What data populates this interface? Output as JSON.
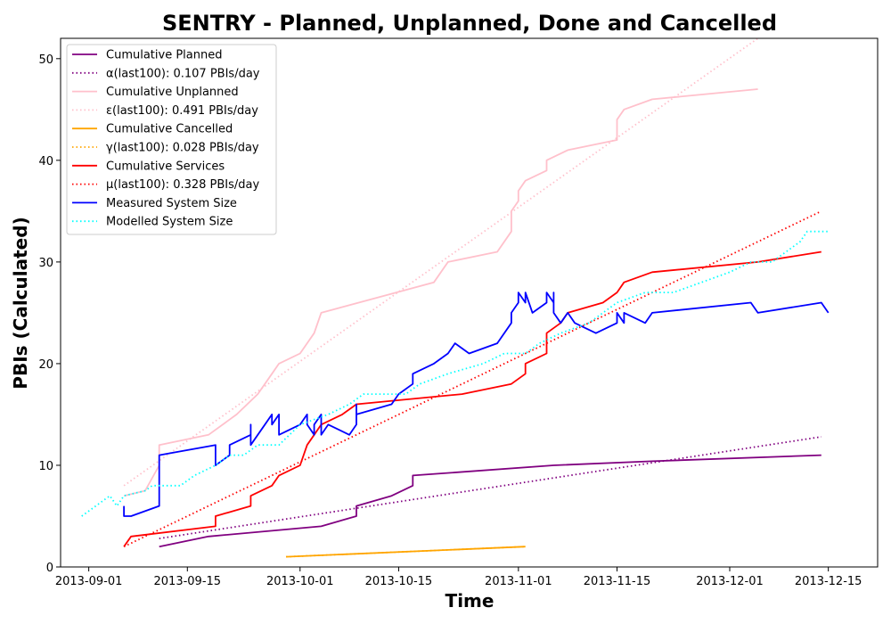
{
  "chart_data": {
    "type": "line",
    "title": "SENTRY - Planned, Unplanned, Done  and Cancelled",
    "xlabel": "Time",
    "ylabel": "PBIs (Calculated)",
    "xlim": [
      "2013-08-28",
      "2013-12-22"
    ],
    "ylim": [
      0,
      52
    ],
    "x_ticks": [
      "2013-09-01",
      "2013-09-15",
      "2013-10-01",
      "2013-10-15",
      "2013-11-01",
      "2013-11-15",
      "2013-12-01",
      "2013-12-15"
    ],
    "y_ticks": [
      0,
      10,
      20,
      30,
      40,
      50
    ],
    "grid": false,
    "legend_position": "top-left",
    "series": [
      {
        "name": "Cumulative Planned",
        "color": "#800080",
        "style": "solid",
        "points": [
          [
            "2013-09-11",
            2
          ],
          [
            "2013-09-18",
            3
          ],
          [
            "2013-10-04",
            4
          ],
          [
            "2013-10-09",
            5
          ],
          [
            "2013-10-09",
            6
          ],
          [
            "2013-10-14",
            7
          ],
          [
            "2013-10-17",
            8
          ],
          [
            "2013-10-17",
            9
          ],
          [
            "2013-11-06",
            10
          ],
          [
            "2013-11-20",
            10.4
          ],
          [
            "2013-12-14",
            11
          ]
        ]
      },
      {
        "name": "α(last100): 0.107 PBIs/day",
        "color": "#800080",
        "style": "dotted",
        "points": [
          [
            "2013-09-11",
            2.8
          ],
          [
            "2013-12-14",
            12.8
          ]
        ]
      },
      {
        "name": "Cumulative Unplanned",
        "color": "#ffc0cb",
        "style": "solid",
        "points": [
          [
            "2013-09-06",
            7
          ],
          [
            "2013-09-09",
            7.5
          ],
          [
            "2013-09-11",
            10
          ],
          [
            "2013-09-11",
            12
          ],
          [
            "2013-09-18",
            13
          ],
          [
            "2013-09-22",
            15
          ],
          [
            "2013-09-25",
            17
          ],
          [
            "2013-09-27",
            19
          ],
          [
            "2013-09-28",
            20
          ],
          [
            "2013-10-01",
            21
          ],
          [
            "2013-10-03",
            23
          ],
          [
            "2013-10-04",
            25
          ],
          [
            "2013-10-20",
            28
          ],
          [
            "2013-10-22",
            30
          ],
          [
            "2013-10-29",
            31
          ],
          [
            "2013-10-31",
            33
          ],
          [
            "2013-10-31",
            35
          ],
          [
            "2013-11-01",
            36
          ],
          [
            "2013-11-01",
            37
          ],
          [
            "2013-11-02",
            38
          ],
          [
            "2013-11-05",
            39
          ],
          [
            "2013-11-05",
            40
          ],
          [
            "2013-11-08",
            41
          ],
          [
            "2013-11-15",
            42
          ],
          [
            "2013-11-15",
            44
          ],
          [
            "2013-11-16",
            45
          ],
          [
            "2013-11-20",
            46
          ],
          [
            "2013-12-05",
            47
          ]
        ]
      },
      {
        "name": "ε(last100): 0.491 PBIs/day",
        "color": "#ffc0cb",
        "style": "dotted",
        "points": [
          [
            "2013-09-06",
            8
          ],
          [
            "2013-12-05",
            52
          ]
        ]
      },
      {
        "name": "Cumulative Cancelled",
        "color": "#ffa500",
        "style": "solid",
        "points": [
          [
            "2013-09-29",
            1
          ],
          [
            "2013-11-02",
            2
          ]
        ]
      },
      {
        "name": "γ(last100): 0.028 PBIs/day",
        "color": "#ffa500",
        "style": "dotted",
        "points": [
          [
            "2013-09-29",
            1
          ],
          [
            "2013-11-02",
            2
          ]
        ]
      },
      {
        "name": "Cumulative Services",
        "color": "#ff0000",
        "style": "solid",
        "points": [
          [
            "2013-09-06",
            2
          ],
          [
            "2013-09-07",
            3
          ],
          [
            "2013-09-19",
            4
          ],
          [
            "2013-09-19",
            5
          ],
          [
            "2013-09-24",
            6
          ],
          [
            "2013-09-24",
            7
          ],
          [
            "2013-09-27",
            8
          ],
          [
            "2013-09-28",
            9
          ],
          [
            "2013-10-01",
            10
          ],
          [
            "2013-10-02",
            12
          ],
          [
            "2013-10-03",
            13
          ],
          [
            "2013-10-04",
            14
          ],
          [
            "2013-10-07",
            15
          ],
          [
            "2013-10-09",
            16
          ],
          [
            "2013-10-24",
            17
          ],
          [
            "2013-10-31",
            18
          ],
          [
            "2013-11-02",
            19
          ],
          [
            "2013-11-02",
            20
          ],
          [
            "2013-11-05",
            21
          ],
          [
            "2013-11-05",
            23
          ],
          [
            "2013-11-07",
            24
          ],
          [
            "2013-11-08",
            25
          ],
          [
            "2013-11-13",
            26
          ],
          [
            "2013-11-15",
            27
          ],
          [
            "2013-11-16",
            28
          ],
          [
            "2013-11-20",
            29
          ],
          [
            "2013-12-05",
            30
          ],
          [
            "2013-12-14",
            31
          ]
        ]
      },
      {
        "name": "μ(last100): 0.328 PBIs/day",
        "color": "#ff0000",
        "style": "dotted",
        "points": [
          [
            "2013-09-06",
            2
          ],
          [
            "2013-12-14",
            35
          ]
        ]
      },
      {
        "name": "Measured System Size",
        "color": "#0000ff",
        "style": "solid",
        "points": [
          [
            "2013-09-06",
            6
          ],
          [
            "2013-09-06",
            5
          ],
          [
            "2013-09-07",
            5
          ],
          [
            "2013-09-11",
            6
          ],
          [
            "2013-09-11",
            10
          ],
          [
            "2013-09-11",
            11
          ],
          [
            "2013-09-19",
            12
          ],
          [
            "2013-09-19",
            10
          ],
          [
            "2013-09-21",
            11
          ],
          [
            "2013-09-21",
            12
          ],
          [
            "2013-09-24",
            13
          ],
          [
            "2013-09-24",
            14
          ],
          [
            "2013-09-24",
            12
          ],
          [
            "2013-09-25",
            13
          ],
          [
            "2013-09-26",
            14
          ],
          [
            "2013-09-27",
            15
          ],
          [
            "2013-09-27",
            14
          ],
          [
            "2013-09-28",
            15
          ],
          [
            "2013-09-28",
            13
          ],
          [
            "2013-10-01",
            14
          ],
          [
            "2013-10-02",
            15
          ],
          [
            "2013-10-02",
            14
          ],
          [
            "2013-10-03",
            13
          ],
          [
            "2013-10-03",
            14
          ],
          [
            "2013-10-04",
            15
          ],
          [
            "2013-10-04",
            13
          ],
          [
            "2013-10-05",
            14
          ],
          [
            "2013-10-08",
            13
          ],
          [
            "2013-10-09",
            14
          ],
          [
            "2013-10-09",
            16
          ],
          [
            "2013-10-09",
            15
          ],
          [
            "2013-10-14",
            16
          ],
          [
            "2013-10-15",
            17
          ],
          [
            "2013-10-17",
            18
          ],
          [
            "2013-10-17",
            19
          ],
          [
            "2013-10-20",
            20
          ],
          [
            "2013-10-22",
            21
          ],
          [
            "2013-10-23",
            22
          ],
          [
            "2013-10-25",
            21
          ],
          [
            "2013-10-29",
            22
          ],
          [
            "2013-10-31",
            24
          ],
          [
            "2013-10-31",
            25
          ],
          [
            "2013-11-01",
            26
          ],
          [
            "2013-11-01",
            27
          ],
          [
            "2013-11-02",
            26
          ],
          [
            "2013-11-02",
            27
          ],
          [
            "2013-11-03",
            25
          ],
          [
            "2013-11-05",
            26
          ],
          [
            "2013-11-05",
            27
          ],
          [
            "2013-11-06",
            26
          ],
          [
            "2013-11-06",
            27
          ],
          [
            "2013-11-06",
            25
          ],
          [
            "2013-11-07",
            24
          ],
          [
            "2013-11-08",
            25
          ],
          [
            "2013-11-09",
            24
          ],
          [
            "2013-11-12",
            23
          ],
          [
            "2013-11-15",
            24
          ],
          [
            "2013-11-15",
            25
          ],
          [
            "2013-11-16",
            24
          ],
          [
            "2013-11-16",
            25
          ],
          [
            "2013-11-19",
            24
          ],
          [
            "2013-11-20",
            25
          ],
          [
            "2013-12-04",
            26
          ],
          [
            "2013-12-05",
            25
          ],
          [
            "2013-12-14",
            26
          ],
          [
            "2013-12-15",
            25
          ]
        ]
      },
      {
        "name": "Modelled System Size",
        "color": "#00ffff",
        "style": "dotted",
        "points": [
          [
            "2013-08-31",
            5
          ],
          [
            "2013-09-02",
            6
          ],
          [
            "2013-09-04",
            7
          ],
          [
            "2013-09-05",
            6
          ],
          [
            "2013-09-06",
            7
          ],
          [
            "2013-09-09",
            7.5
          ],
          [
            "2013-09-10",
            8
          ],
          [
            "2013-09-14",
            8
          ],
          [
            "2013-09-16",
            9
          ],
          [
            "2013-09-19",
            10
          ],
          [
            "2013-09-21",
            11
          ],
          [
            "2013-09-23",
            11
          ],
          [
            "2013-09-25",
            12
          ],
          [
            "2013-09-28",
            12
          ],
          [
            "2013-10-01",
            14
          ],
          [
            "2013-10-05",
            15
          ],
          [
            "2013-10-08",
            16
          ],
          [
            "2013-10-10",
            17
          ],
          [
            "2013-10-16",
            17
          ],
          [
            "2013-10-18",
            18
          ],
          [
            "2013-10-22",
            19
          ],
          [
            "2013-10-27",
            20
          ],
          [
            "2013-10-30",
            21
          ],
          [
            "2013-11-02",
            21
          ],
          [
            "2013-11-04",
            22
          ],
          [
            "2013-11-07",
            23
          ],
          [
            "2013-11-11",
            24
          ],
          [
            "2013-11-15",
            26
          ],
          [
            "2013-11-19",
            27
          ],
          [
            "2013-11-23",
            27
          ],
          [
            "2013-11-27",
            28
          ],
          [
            "2013-12-01",
            29
          ],
          [
            "2013-12-04",
            30
          ],
          [
            "2013-12-07",
            30
          ],
          [
            "2013-12-09",
            31
          ],
          [
            "2013-12-11",
            32
          ],
          [
            "2013-12-12",
            33
          ],
          [
            "2013-12-15",
            33
          ]
        ]
      }
    ]
  }
}
